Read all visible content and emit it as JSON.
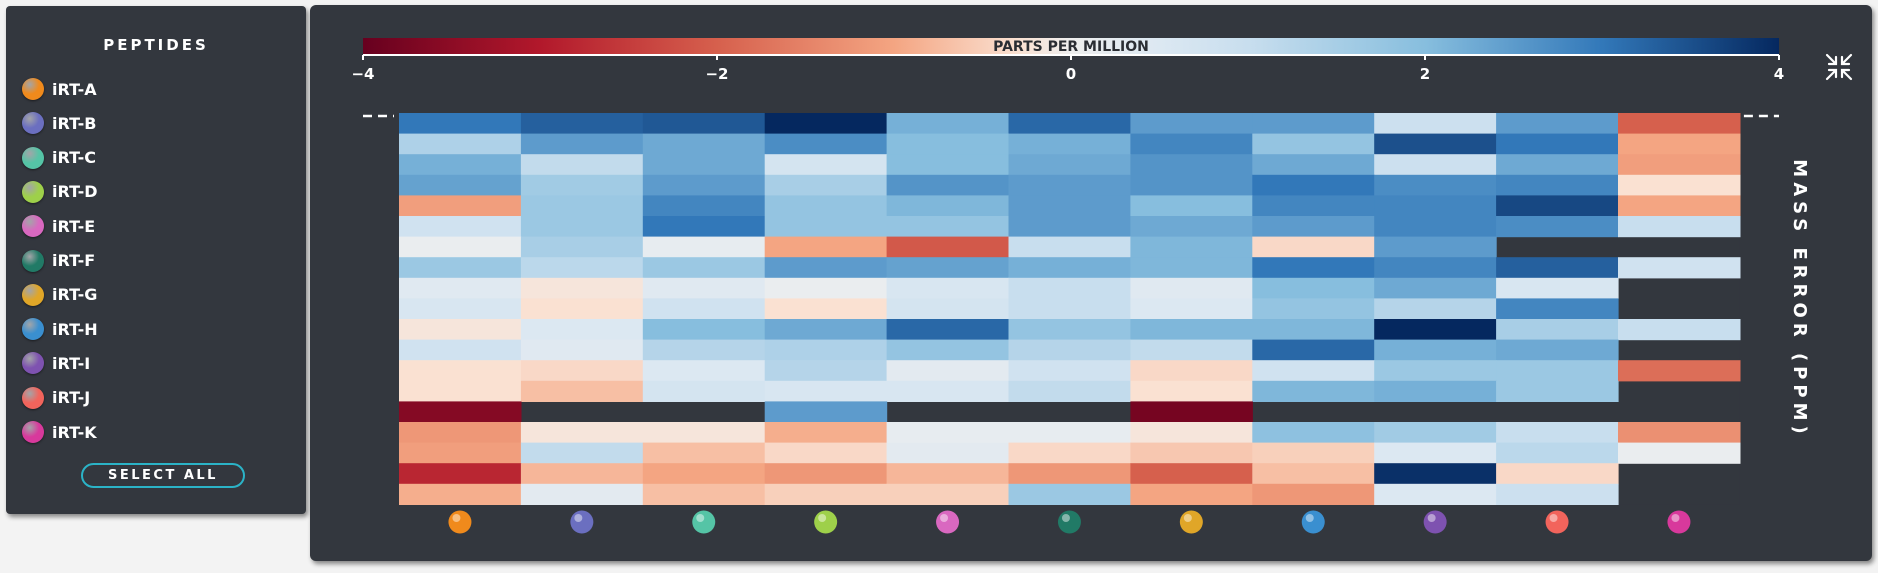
{
  "legend": {
    "title": "PEPTIDES",
    "select_all": "SELECT ALL",
    "items": [
      {
        "label": "iRT-A",
        "color": "#f08a1c"
      },
      {
        "label": "iRT-B",
        "color": "#6b6fc0"
      },
      {
        "label": "iRT-C",
        "color": "#55c4a6"
      },
      {
        "label": "iRT-D",
        "color": "#9ed04a"
      },
      {
        "label": "iRT-E",
        "color": "#d968c0"
      },
      {
        "label": "iRT-F",
        "color": "#217a66"
      },
      {
        "label": "iRT-G",
        "color": "#e0a628"
      },
      {
        "label": "iRT-H",
        "color": "#3a8fd0"
      },
      {
        "label": "iRT-I",
        "color": "#7e52b0"
      },
      {
        "label": "iRT-J",
        "color": "#f2645c"
      },
      {
        "label": "iRT-K",
        "color": "#d8399c"
      }
    ]
  },
  "toolbar": {
    "expand_icon": "collapse-arrows-icon"
  },
  "chart_data": {
    "type": "heatmap",
    "colorbar": {
      "title": "PARTS PER MILLION",
      "range": [
        -4,
        4
      ],
      "ticks": [
        -4,
        -2,
        0,
        2,
        4
      ],
      "tick_labels": [
        "−4",
        "−2",
        "0",
        "2",
        "4"
      ]
    },
    "ylabel": "MASS ERROR (PPM)",
    "columns": [
      "iRT-A",
      "iRT-B",
      "iRT-C",
      "iRT-D",
      "iRT-E",
      "iRT-F",
      "iRT-G",
      "iRT-H",
      "iRT-I",
      "iRT-J",
      "iRT-K"
    ],
    "reference_line": 0,
    "values": [
      [
        3.0,
        3.3,
        3.4,
        4.0,
        2.2,
        3.2,
        2.5,
        2.5,
        0.9,
        2.5,
        -2.0
      ],
      [
        1.4,
        2.5,
        2.3,
        2.7,
        2.0,
        2.2,
        2.8,
        1.8,
        3.5,
        3.0,
        -1.0
      ],
      [
        2.2,
        1.1,
        2.3,
        0.7,
        2.0,
        2.3,
        2.6,
        2.3,
        0.9,
        2.3,
        -1.1
      ],
      [
        2.4,
        1.6,
        2.5,
        1.5,
        2.6,
        2.5,
        2.6,
        3.0,
        2.7,
        2.8,
        -0.3
      ],
      [
        -1.1,
        1.7,
        2.8,
        1.8,
        2.1,
        2.5,
        2.0,
        2.8,
        2.8,
        3.6,
        -1.0
      ],
      [
        0.8,
        1.7,
        3.0,
        1.8,
        1.8,
        2.5,
        2.3,
        2.5,
        2.8,
        2.7,
        1.0
      ],
      [
        0.1,
        1.5,
        0.2,
        -1.0,
        -2.1,
        1.0,
        2.1,
        -0.4,
        2.5,
        null,
        null
      ],
      [
        1.7,
        1.2,
        1.7,
        2.5,
        2.4,
        2.2,
        2.1,
        3.0,
        2.8,
        3.3,
        0.8
      ],
      [
        0.4,
        -0.2,
        0.4,
        0.1,
        0.6,
        1.0,
        0.4,
        2.0,
        2.3,
        0.6,
        null
      ],
      [
        0.6,
        -0.3,
        0.8,
        -0.3,
        0.7,
        1.0,
        0.5,
        1.8,
        1.3,
        2.8,
        null
      ],
      [
        -0.2,
        0.5,
        2.0,
        2.3,
        3.2,
        1.8,
        2.1,
        2.1,
        4.0,
        1.5,
        1.0
      ],
      [
        0.8,
        0.4,
        1.3,
        1.4,
        1.8,
        1.3,
        1.1,
        3.2,
        2.2,
        2.3,
        null
      ],
      [
        -0.3,
        -0.4,
        0.5,
        1.3,
        0.3,
        0.8,
        -0.4,
        0.8,
        1.7,
        1.7,
        -1.8
      ],
      [
        -0.3,
        -0.7,
        0.7,
        0.6,
        0.6,
        1.1,
        -0.3,
        2.1,
        2.2,
        1.7,
        null
      ],
      [
        -3.6,
        null,
        null,
        2.5,
        null,
        null,
        -3.8,
        null,
        null,
        null,
        null
      ],
      [
        -1.2,
        -0.2,
        -0.2,
        -0.9,
        0.2,
        0.2,
        -0.2,
        1.9,
        1.6,
        1.0,
        -1.3
      ],
      [
        -1.1,
        1.1,
        -0.7,
        -0.4,
        0.3,
        -0.4,
        -0.6,
        -0.5,
        0.5,
        1.2,
        0.1
      ],
      [
        -2.8,
        -0.8,
        -1.0,
        -1.2,
        -0.8,
        -1.2,
        -2.0,
        -0.7,
        3.9,
        -0.4,
        null
      ],
      [
        -0.9,
        0.3,
        -0.7,
        -0.5,
        -0.5,
        1.7,
        -1.0,
        -1.2,
        0.5,
        0.9,
        null
      ]
    ]
  }
}
